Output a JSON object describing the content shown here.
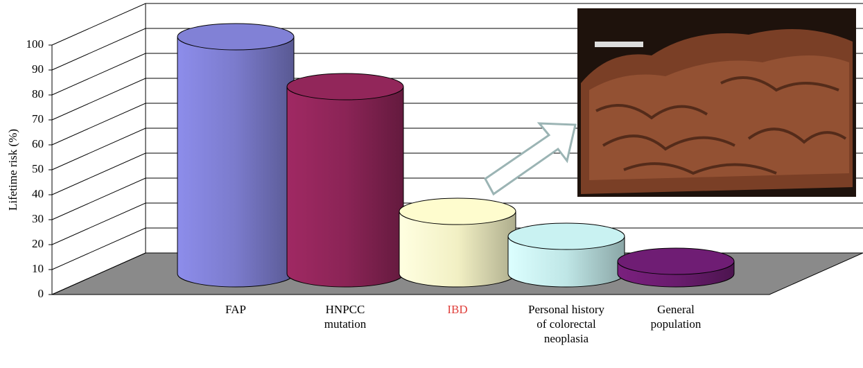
{
  "chart_data": {
    "type": "cylinder-bar",
    "y_axis_label": "Lifetime risk (%)",
    "categories": [
      "FAP",
      "HNPCC mutation",
      "IBD",
      "Personal history of colorectal neoplasia",
      "General population"
    ],
    "category_label_colors": [
      "#000000",
      "#000000",
      "#e0403c",
      "#000000",
      "#000000"
    ],
    "values": [
      95,
      75,
      25,
      15,
      5
    ],
    "colors": [
      "#7b7bcc",
      "#8b2456",
      "#f2f0c4",
      "#bfe6e6",
      "#6a1c6e"
    ],
    "ylim": [
      0,
      100
    ],
    "yticks": [
      0,
      10,
      20,
      30,
      40,
      50,
      60,
      70,
      80,
      90,
      100
    ],
    "grid": true,
    "floor_color": "#8a8a8a"
  }
}
